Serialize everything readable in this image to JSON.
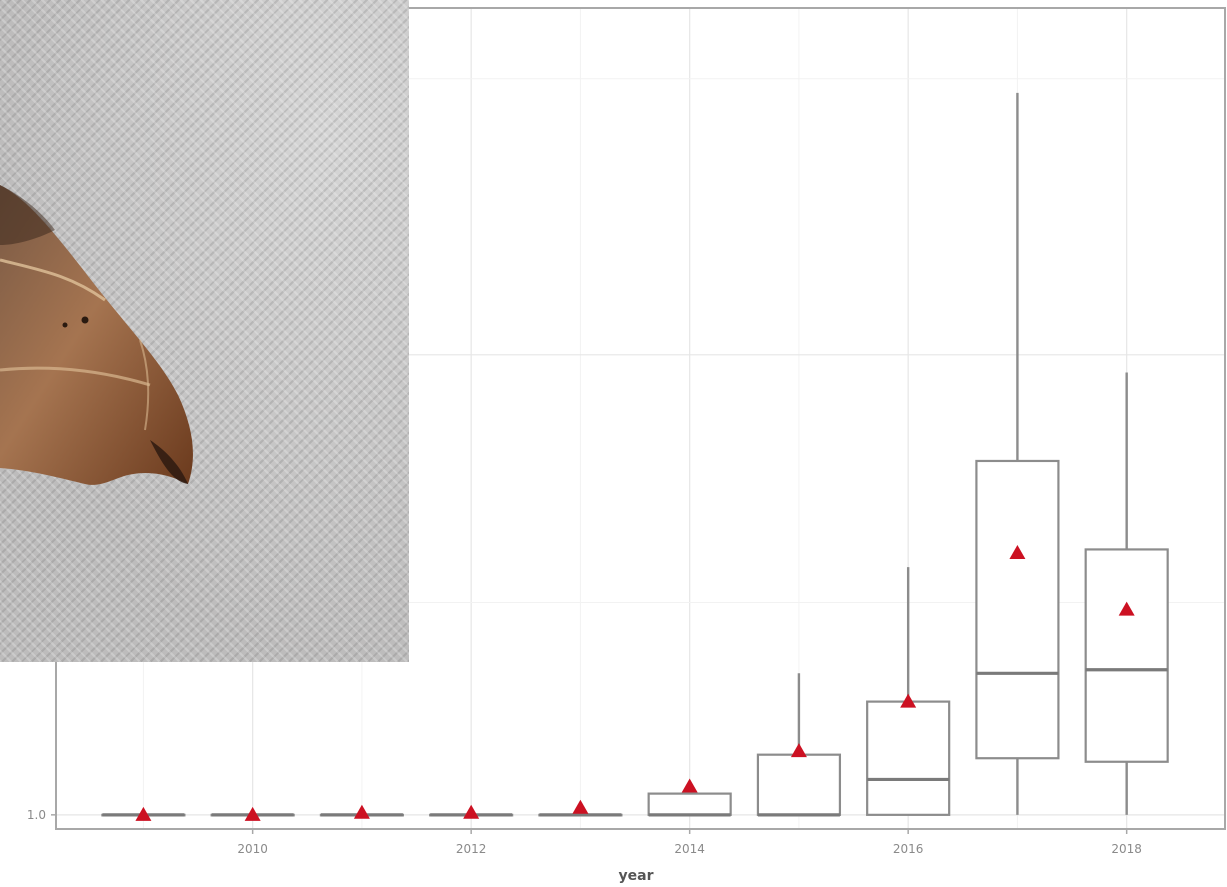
{
  "chart_data": {
    "type": "box",
    "xlabel": "year",
    "ylabel": "",
    "x_tick_labels": [
      "2010",
      "2012",
      "2014",
      "2016",
      "2018"
    ],
    "y_tick_labels": [
      "1.0"
    ],
    "x_range": [
      2008.2,
      2018.9
    ],
    "y_range": [
      0.8,
      12.4
    ],
    "grid": true,
    "mean_marker": {
      "shape": "triangle",
      "color": "#cc1122"
    },
    "box_color": "#8c8c8c",
    "boxes": [
      {
        "x": 2009,
        "min": 1.0,
        "q1": 1.0,
        "median": 1.0,
        "q3": 1.0,
        "max": 1.0,
        "mean": 1.0
      },
      {
        "x": 2010,
        "min": 1.0,
        "q1": 1.0,
        "median": 1.0,
        "q3": 1.0,
        "max": 1.0,
        "mean": 1.0
      },
      {
        "x": 2011,
        "min": 1.0,
        "q1": 1.0,
        "median": 1.0,
        "q3": 1.0,
        "max": 1.0,
        "mean": 1.03
      },
      {
        "x": 2012,
        "min": 1.0,
        "q1": 1.0,
        "median": 1.0,
        "q3": 1.0,
        "max": 1.0,
        "mean": 1.03
      },
      {
        "x": 2013,
        "min": 1.0,
        "q1": 1.0,
        "median": 1.0,
        "q3": 1.0,
        "max": 1.0,
        "mean": 1.1
      },
      {
        "x": 2014,
        "min": 1.0,
        "q1": 1.0,
        "median": 1.0,
        "q3": 1.3,
        "max": 1.3,
        "mean": 1.4
      },
      {
        "x": 2015,
        "min": 1.0,
        "q1": 1.0,
        "median": 1.0,
        "q3": 1.85,
        "max": 3.0,
        "mean": 1.9
      },
      {
        "x": 2016,
        "min": 1.0,
        "q1": 1.0,
        "median": 1.5,
        "q3": 2.6,
        "max": 4.5,
        "mean": 2.6
      },
      {
        "x": 2017,
        "min": 1.0,
        "q1": 1.8,
        "median": 3.0,
        "q3": 6.0,
        "max": 11.2,
        "mean": 4.7
      },
      {
        "x": 2018,
        "min": 1.0,
        "q1": 1.75,
        "median": 3.05,
        "q3": 4.75,
        "max": 7.25,
        "mean": 3.9
      }
    ]
  },
  "photo": {
    "subject": "moth-wing",
    "colors": {
      "fabric": "#c4c3c3",
      "wing": "#9a6a45",
      "wing_dark": "#6b3a1d"
    }
  }
}
